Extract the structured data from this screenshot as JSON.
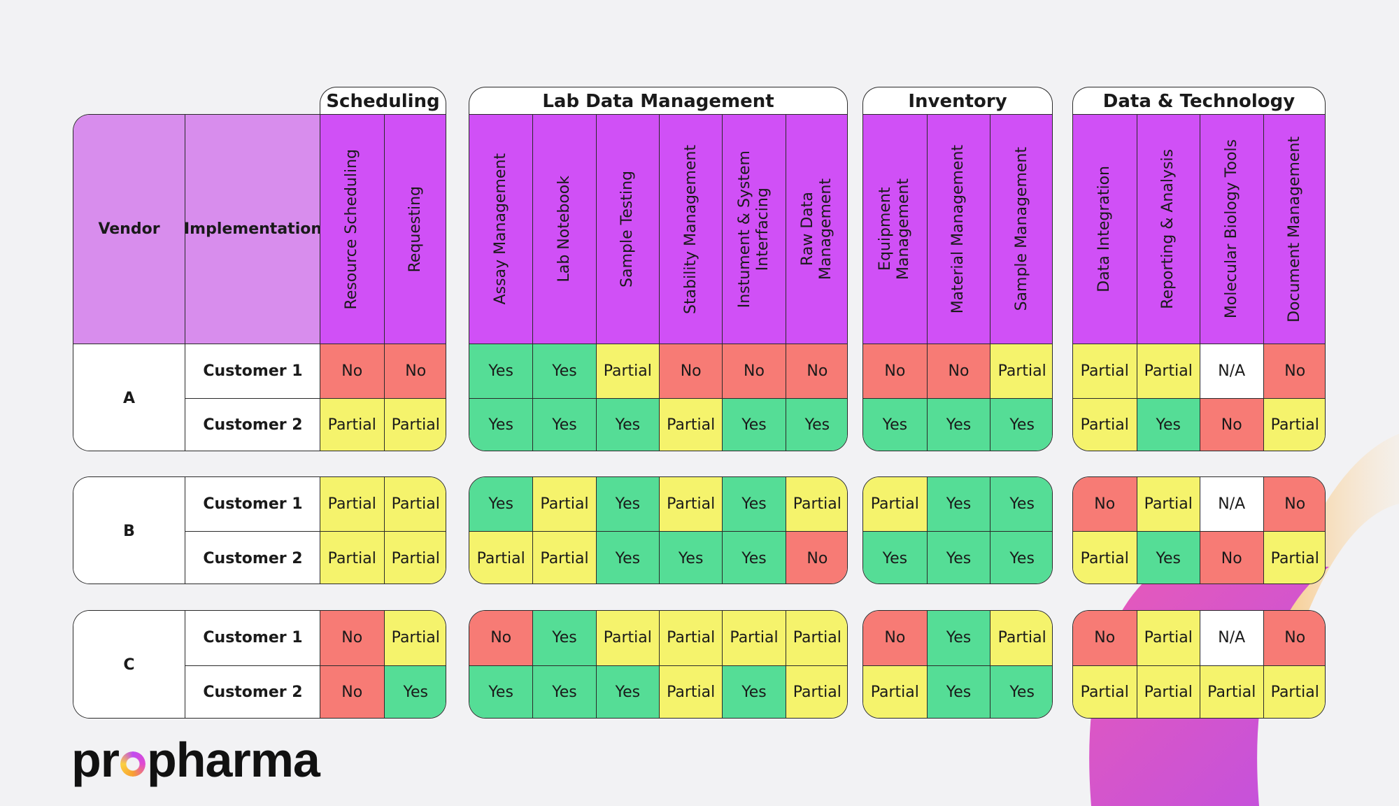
{
  "headers": {
    "vendor": "Vendor",
    "implementation": "Implementation"
  },
  "groups": [
    {
      "name": "Scheduling",
      "columns": [
        "Resource Scheduling",
        "Requesting"
      ]
    },
    {
      "name": "Lab Data Management",
      "columns": [
        "Assay Management",
        "Lab Notebook",
        "Sample Testing",
        "Stability Management",
        "Instument & System\nInterfacing",
        "Raw Data\nManagement"
      ]
    },
    {
      "name": "Inventory",
      "columns": [
        "Equipment\nManagement",
        "Material Management",
        "Sample Management"
      ]
    },
    {
      "name": "Data & Technology",
      "columns": [
        "Data Integration",
        "Reporting & Analysis",
        "Molecular Biology Tools",
        "Document Management"
      ]
    }
  ],
  "vendors": [
    {
      "name": "A",
      "customers": [
        {
          "name": "Customer 1",
          "values": [
            [
              "No",
              "No"
            ],
            [
              "Yes",
              "Yes",
              "Partial",
              "No",
              "No",
              "No"
            ],
            [
              "No",
              "No",
              "Partial"
            ],
            [
              "Partial",
              "Partial",
              "N/A",
              "No"
            ]
          ]
        },
        {
          "name": "Customer 2",
          "values": [
            [
              "Partial",
              "Partial"
            ],
            [
              "Yes",
              "Yes",
              "Yes",
              "Partial",
              "Yes",
              "Yes"
            ],
            [
              "Yes",
              "Yes",
              "Yes"
            ],
            [
              "Partial",
              "Yes",
              "No",
              "Partial"
            ]
          ]
        }
      ]
    },
    {
      "name": "B",
      "customers": [
        {
          "name": "Customer 1",
          "values": [
            [
              "Partial",
              "Partial"
            ],
            [
              "Yes",
              "Partial",
              "Yes",
              "Partial",
              "Yes",
              "Partial"
            ],
            [
              "Partial",
              "Yes",
              "Yes"
            ],
            [
              "No",
              "Partial",
              "N/A",
              "No"
            ]
          ]
        },
        {
          "name": "Customer 2",
          "values": [
            [
              "Partial",
              "Partial"
            ],
            [
              "Partial",
              "Partial",
              "Yes",
              "Yes",
              "Yes",
              "No"
            ],
            [
              "Yes",
              "Yes",
              "Yes"
            ],
            [
              "Partial",
              "Yes",
              "No",
              "Partial"
            ]
          ]
        }
      ]
    },
    {
      "name": "C",
      "customers": [
        {
          "name": "Customer 1",
          "values": [
            [
              "No",
              "Partial"
            ],
            [
              "No",
              "Yes",
              "Partial",
              "Partial",
              "Partial",
              "Partial"
            ],
            [
              "No",
              "Yes",
              "Partial"
            ],
            [
              "No",
              "Partial",
              "N/A",
              "No"
            ]
          ]
        },
        {
          "name": "Customer 2",
          "values": [
            [
              "No",
              "Yes"
            ],
            [
              "Yes",
              "Yes",
              "Yes",
              "Partial",
              "Yes",
              "Partial"
            ],
            [
              "Partial",
              "Yes",
              "Yes"
            ],
            [
              "Partial",
              "Partial",
              "Partial",
              "Partial"
            ]
          ]
        }
      ]
    }
  ],
  "status_colors": {
    "Yes": "#55dd96",
    "No": "#f77b75",
    "Partial": "#f5f36c",
    "N/A": "#ffffff"
  },
  "header_colors": {
    "feature": "#d050f6",
    "label": "#d88ded"
  },
  "logo": {
    "pre": "pr",
    "post": "pharma",
    "full": "propharma"
  }
}
